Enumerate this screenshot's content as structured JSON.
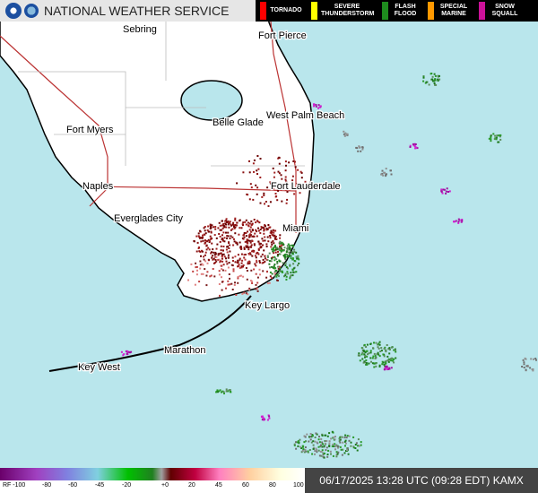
{
  "header": {
    "title": "NATIONAL WEATHER SERVICE",
    "warnings": [
      {
        "label": "TORNADO",
        "color": "#ff0000"
      },
      {
        "label": "SEVERE THUNDERSTORM",
        "color": "#ffff00"
      },
      {
        "label": "FLASH FLOOD",
        "color": "#1e8c1e"
      },
      {
        "label": "SPECIAL MARINE",
        "color": "#ff9900"
      },
      {
        "label": "SNOW SQUALL",
        "color": "#cc1199"
      }
    ]
  },
  "map": {
    "cities": [
      "Sebring",
      "Fort Pierce",
      "Fort Myers",
      "Belle Glade",
      "West Palm Beach",
      "Naples",
      "Fort Lauderdale",
      "Everglades City",
      "Miami",
      "Key Largo",
      "Marathon",
      "Key West"
    ]
  },
  "scale": {
    "labels": [
      "RF -100",
      "-80",
      "-60",
      "-45",
      "-20",
      "+0",
      "20",
      "45",
      "60",
      "80",
      "100"
    ]
  },
  "timestamp": "06/17/2025 13:28 UTC (09:28 EDT) KAMX"
}
